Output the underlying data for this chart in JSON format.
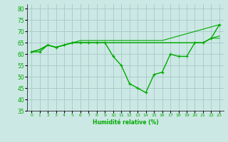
{
  "xlabel": "Humidité relative (%)",
  "ylabel": "",
  "xlim": [
    -0.5,
    23.5
  ],
  "ylim": [
    35,
    82
  ],
  "yticks": [
    35,
    40,
    45,
    50,
    55,
    60,
    65,
    70,
    75,
    80
  ],
  "xticks": [
    0,
    1,
    2,
    3,
    4,
    5,
    6,
    7,
    8,
    9,
    10,
    11,
    12,
    13,
    14,
    15,
    16,
    17,
    18,
    19,
    20,
    21,
    22,
    23
  ],
  "background_color": "#cce8e4",
  "grid_color": "#aacccc",
  "line_color": "#00aa00",
  "series": [
    {
      "x": [
        0,
        1,
        2,
        3,
        4,
        5,
        6,
        7,
        8,
        9,
        10,
        11,
        12,
        13,
        14,
        15,
        16,
        17,
        18,
        19,
        20,
        21,
        22,
        23
      ],
      "y": [
        61,
        61,
        64,
        63,
        64,
        65,
        65,
        65,
        65,
        65,
        59,
        55,
        47,
        45,
        43,
        51,
        52,
        60,
        59,
        59,
        65,
        65,
        67,
        73
      ],
      "marker": "+",
      "lw": 1.0
    },
    {
      "x": [
        0,
        1,
        2,
        3,
        4,
        5,
        6,
        7,
        8,
        9,
        10,
        11,
        12,
        13,
        14,
        15,
        16,
        17,
        18,
        19,
        20,
        21,
        22,
        23
      ],
      "y": [
        61,
        62,
        64,
        63,
        64,
        65,
        65,
        65,
        65,
        65,
        65,
        65,
        65,
        65,
        65,
        65,
        65,
        65,
        65,
        65,
        65,
        65,
        67,
        68
      ],
      "marker": null,
      "lw": 0.8
    },
    {
      "x": [
        0,
        1,
        2,
        3,
        4,
        5,
        6,
        7,
        8,
        9,
        10,
        11,
        12,
        13,
        14,
        15,
        16,
        17,
        18,
        19,
        20,
        21,
        22,
        23
      ],
      "y": [
        61,
        62,
        64,
        63,
        64,
        65,
        66,
        66,
        66,
        66,
        66,
        66,
        66,
        66,
        66,
        66,
        66,
        67,
        68,
        69,
        70,
        71,
        72,
        73
      ],
      "marker": null,
      "lw": 0.8
    },
    {
      "x": [
        0,
        1,
        2,
        3,
        4,
        5,
        6,
        7,
        8,
        9,
        10,
        11,
        12,
        13,
        14,
        15,
        16,
        17,
        18,
        19,
        20,
        21,
        22,
        23
      ],
      "y": [
        61,
        62,
        64,
        63,
        64,
        65,
        65,
        65,
        65,
        65,
        65,
        65,
        65,
        65,
        65,
        65,
        65,
        65,
        65,
        65,
        65,
        65,
        67,
        67
      ],
      "marker": null,
      "lw": 0.8
    }
  ]
}
